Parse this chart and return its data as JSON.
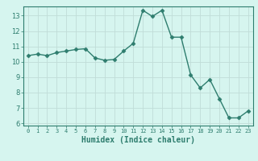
{
  "x": [
    0,
    1,
    2,
    3,
    4,
    5,
    6,
    7,
    8,
    9,
    10,
    11,
    12,
    13,
    14,
    15,
    16,
    17,
    18,
    19,
    20,
    21,
    22,
    23
  ],
  "y": [
    10.4,
    10.5,
    10.4,
    10.6,
    10.7,
    10.8,
    10.85,
    10.25,
    10.1,
    10.15,
    10.7,
    11.2,
    13.35,
    12.95,
    13.35,
    11.6,
    11.6,
    9.15,
    8.3,
    8.85,
    7.6,
    6.35,
    6.35,
    6.8
  ],
  "line_color": "#2e7d6e",
  "marker": "D",
  "markersize": 2.5,
  "linewidth": 1.0,
  "xlabel": "Humidex (Indice chaleur)",
  "xlim": [
    -0.5,
    23.5
  ],
  "ylim": [
    5.85,
    13.6
  ],
  "yticks": [
    6,
    7,
    8,
    9,
    10,
    11,
    12,
    13
  ],
  "xticks": [
    0,
    1,
    2,
    3,
    4,
    5,
    6,
    7,
    8,
    9,
    10,
    11,
    12,
    13,
    14,
    15,
    16,
    17,
    18,
    19,
    20,
    21,
    22,
    23
  ],
  "background_color": "#d6f5ef",
  "grid_color": "#c0ddd8",
  "xlabel_fontsize": 7,
  "xtick_fontsize": 5,
  "ytick_fontsize": 6
}
